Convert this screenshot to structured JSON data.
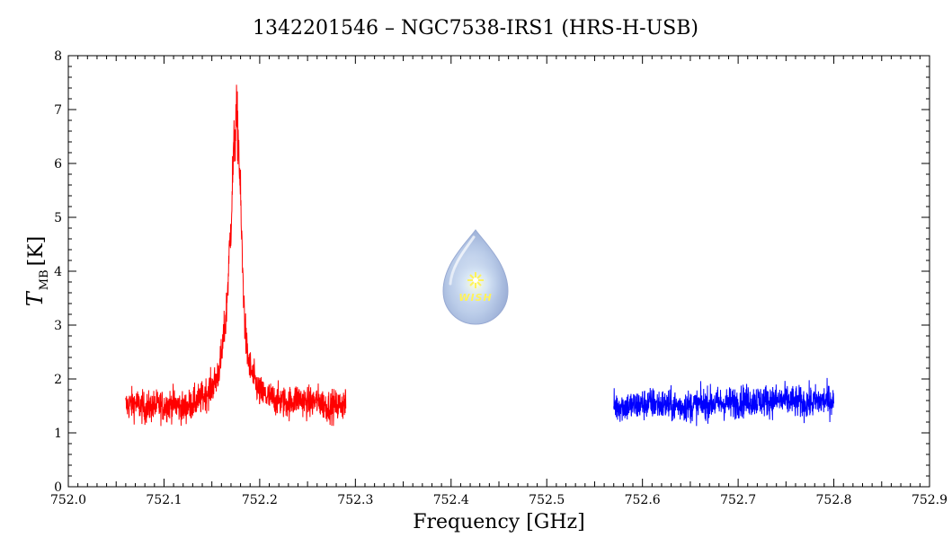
{
  "chart_data": {
    "type": "line",
    "title": "1342201546 – NGC7538-IRS1 (HRS-H-USB)",
    "xlabel": "Frequency [GHz]",
    "ylabel_main": "T",
    "ylabel_sub": "MB",
    "ylabel_unit": "[K]",
    "xlim": [
      752.0,
      752.9
    ],
    "ylim": [
      0,
      8
    ],
    "x_ticks": [
      "752.0",
      "752.1",
      "752.2",
      "752.3",
      "752.4",
      "752.5",
      "752.6",
      "752.7",
      "752.8",
      "752.9"
    ],
    "y_ticks": [
      "0",
      "1",
      "2",
      "3",
      "4",
      "5",
      "6",
      "7",
      "8"
    ],
    "grid": false,
    "series": [
      {
        "color": "#ff0000",
        "x": [
          752.06,
          752.07,
          752.08,
          752.09,
          752.1,
          752.11,
          752.12,
          752.13,
          752.14,
          752.15,
          752.155,
          752.16,
          752.165,
          752.17,
          752.172,
          752.174,
          752.176,
          752.178,
          752.18,
          752.182,
          752.184,
          752.186,
          752.19,
          752.195,
          752.2,
          752.21,
          752.22,
          752.23,
          752.24,
          752.25,
          752.26,
          752.27,
          752.28,
          752.29
        ],
        "y": [
          1.5,
          1.55,
          1.45,
          1.5,
          1.5,
          1.55,
          1.45,
          1.55,
          1.65,
          1.85,
          2.0,
          2.4,
          3.2,
          4.9,
          5.9,
          6.5,
          6.85,
          6.4,
          5.3,
          4.1,
          3.2,
          2.6,
          2.2,
          1.95,
          1.75,
          1.65,
          1.6,
          1.55,
          1.65,
          1.55,
          1.6,
          1.5,
          1.5,
          1.55
        ]
      },
      {
        "color": "#0000ff",
        "x": [
          752.57,
          752.59,
          752.61,
          752.63,
          752.65,
          752.67,
          752.69,
          752.71,
          752.73,
          752.75,
          752.77,
          752.79,
          752.8
        ],
        "y": [
          1.5,
          1.5,
          1.55,
          1.5,
          1.5,
          1.55,
          1.55,
          1.6,
          1.6,
          1.6,
          1.55,
          1.6,
          1.6
        ]
      }
    ]
  },
  "logo": {
    "text": "WISH",
    "colors": {
      "drop": "#a9b9dd",
      "core": "#cfe0f5",
      "star": "#fff35a"
    }
  }
}
